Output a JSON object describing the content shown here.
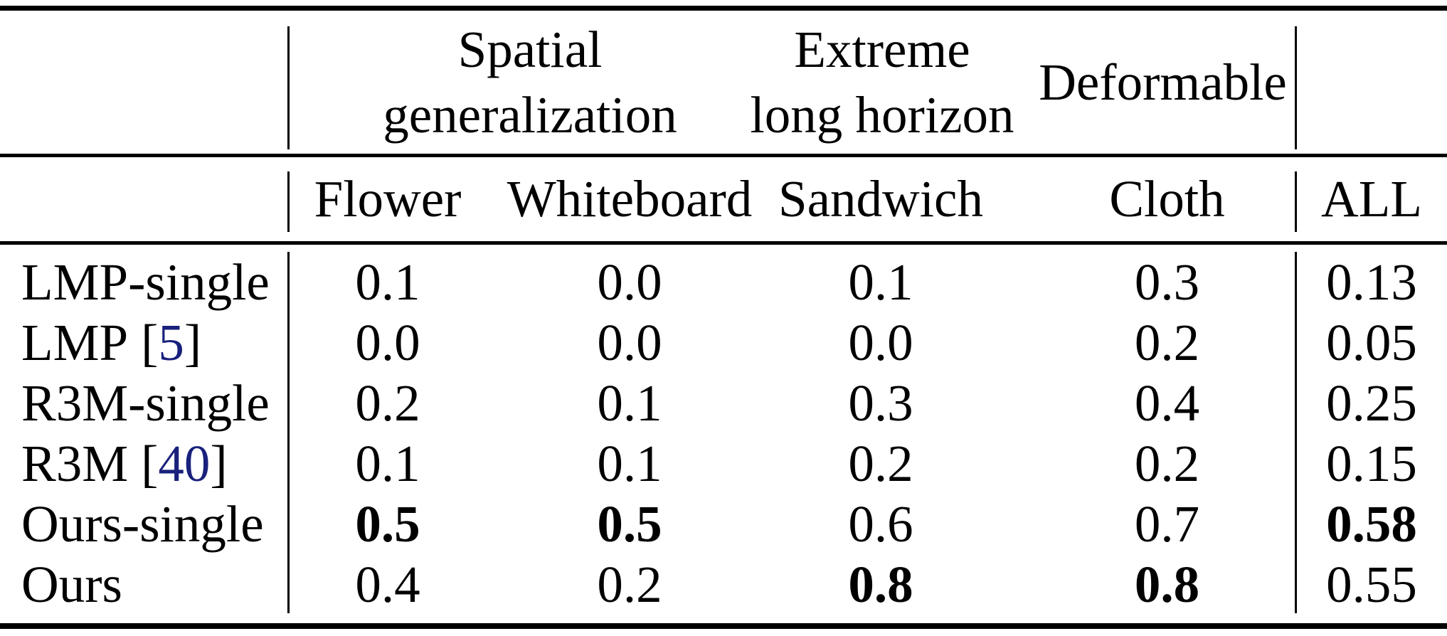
{
  "colors": {
    "background": "#ffffff",
    "text": "#000000",
    "rule": "#000000",
    "citation": "#19217c"
  },
  "table": {
    "group_headers": {
      "spatial": {
        "line1": "Spatial",
        "line2": "generalization"
      },
      "long_horizon": {
        "line1": "Extreme",
        "line2": "long horizon"
      },
      "deformable": "Deformable"
    },
    "columns": {
      "flower": "Flower",
      "whiteboard": "Whiteboard",
      "sandwich": "Sandwich",
      "cloth": "Cloth",
      "all": "ALL"
    },
    "rows": [
      {
        "label": "LMP-single",
        "cells": [
          {
            "v": "0.1"
          },
          {
            "v": "0.0"
          },
          {
            "v": "0.1"
          },
          {
            "v": "0.3"
          },
          {
            "v": "0.13"
          }
        ]
      },
      {
        "label": "LMP",
        "cite_open": "[",
        "cite": "5",
        "cite_close": "]",
        "cells": [
          {
            "v": "0.0"
          },
          {
            "v": "0.0"
          },
          {
            "v": "0.0"
          },
          {
            "v": "0.2"
          },
          {
            "v": "0.05"
          }
        ]
      },
      {
        "label": "R3M-single",
        "cells": [
          {
            "v": "0.2"
          },
          {
            "v": "0.1"
          },
          {
            "v": "0.3"
          },
          {
            "v": "0.4"
          },
          {
            "v": "0.25"
          }
        ]
      },
      {
        "label": "R3M",
        "cite_open": "[",
        "cite": "40",
        "cite_close": "]",
        "cells": [
          {
            "v": "0.1"
          },
          {
            "v": "0.1"
          },
          {
            "v": "0.2"
          },
          {
            "v": "0.2"
          },
          {
            "v": "0.15"
          }
        ]
      },
      {
        "label": "Ours-single",
        "cells": [
          {
            "v": "0.5",
            "b": true
          },
          {
            "v": "0.5",
            "b": true
          },
          {
            "v": "0.6"
          },
          {
            "v": "0.7"
          },
          {
            "v": "0.58",
            "b": true
          }
        ]
      },
      {
        "label": "Ours",
        "cells": [
          {
            "v": "0.4"
          },
          {
            "v": "0.2"
          },
          {
            "v": "0.8",
            "b": true
          },
          {
            "v": "0.8",
            "b": true
          },
          {
            "v": "0.55"
          }
        ]
      }
    ]
  }
}
